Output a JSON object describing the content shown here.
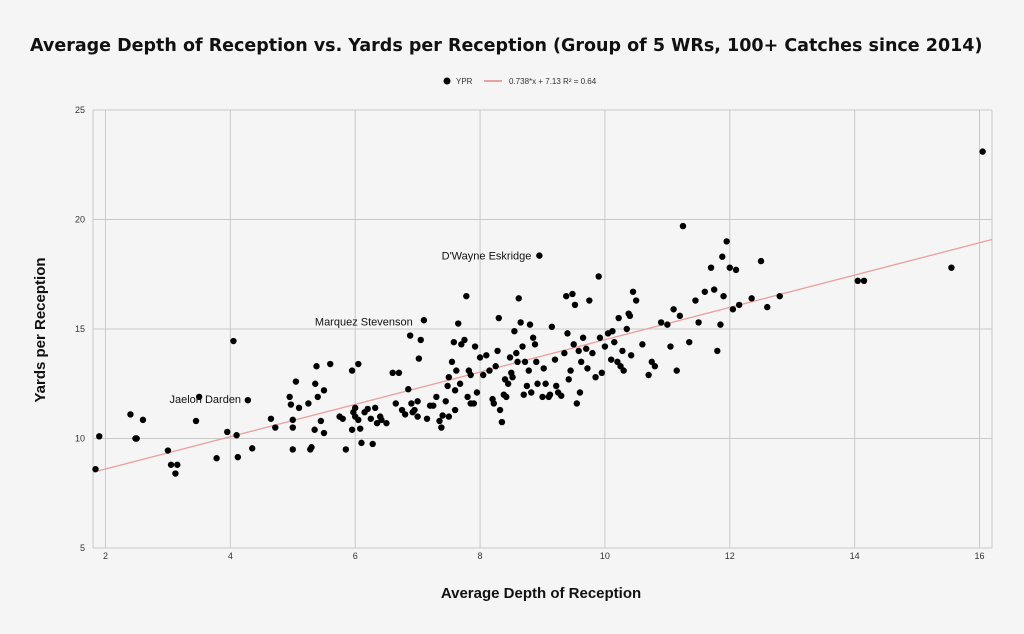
{
  "chart_data": {
    "type": "scatter",
    "title": "Average Depth of Reception vs. Yards per Reception (Group of 5 WRs, 100+ Catches since 2014)",
    "xlabel": "Average Depth of Reception",
    "ylabel": "Yards per Reception",
    "xlim": [
      1.8,
      16.2
    ],
    "ylim": [
      5,
      25
    ],
    "x_ticks": [
      2,
      4,
      6,
      8,
      10,
      12,
      14,
      16
    ],
    "y_ticks": [
      5,
      10,
      15,
      20,
      25
    ],
    "grid": true,
    "legend_position": "top-center",
    "legend": {
      "points_label": "YPR",
      "trendline_label": "0.738*x + 7.13 R² = 0.64"
    },
    "trendline": {
      "slope": 0.738,
      "intercept": 7.13,
      "r2": 0.64,
      "color": "#e8a0a0"
    },
    "point_color": "#000000",
    "annotations": [
      {
        "text": "D'Wayne Eskridge",
        "x": 8.95,
        "y": 18.35
      },
      {
        "text": "Marquez Stevenson",
        "x": 7.05,
        "y": 15.35
      },
      {
        "text": "Jaelon Darden",
        "x": 4.3,
        "y": 11.8
      }
    ],
    "points": [
      [
        1.84,
        8.6
      ],
      [
        1.9,
        10.1
      ],
      [
        2.4,
        11.1
      ],
      [
        2.48,
        10.0
      ],
      [
        2.5,
        10.0
      ],
      [
        2.6,
        10.85
      ],
      [
        3.0,
        9.45
      ],
      [
        3.05,
        8.8
      ],
      [
        3.12,
        8.4
      ],
      [
        3.15,
        8.8
      ],
      [
        3.45,
        10.8
      ],
      [
        3.5,
        11.9
      ],
      [
        3.78,
        9.1
      ],
      [
        3.95,
        10.3
      ],
      [
        4.05,
        14.45
      ],
      [
        4.1,
        10.15
      ],
      [
        4.12,
        9.15
      ],
      [
        4.28,
        11.75
      ],
      [
        4.35,
        9.55
      ],
      [
        4.65,
        10.9
      ],
      [
        4.72,
        10.5
      ],
      [
        4.95,
        11.9
      ],
      [
        4.97,
        11.55
      ],
      [
        5.0,
        9.5
      ],
      [
        5.0,
        10.85
      ],
      [
        5.0,
        10.5
      ],
      [
        5.05,
        12.6
      ],
      [
        5.1,
        11.4
      ],
      [
        5.25,
        11.6
      ],
      [
        5.28,
        9.5
      ],
      [
        5.3,
        9.6
      ],
      [
        5.35,
        10.4
      ],
      [
        5.36,
        12.5
      ],
      [
        5.38,
        13.3
      ],
      [
        5.4,
        11.9
      ],
      [
        5.45,
        10.8
      ],
      [
        5.5,
        10.25
      ],
      [
        5.5,
        12.2
      ],
      [
        5.6,
        13.4
      ],
      [
        5.75,
        11.0
      ],
      [
        5.8,
        10.9
      ],
      [
        5.85,
        9.5
      ],
      [
        5.95,
        13.1
      ],
      [
        5.95,
        10.4
      ],
      [
        5.97,
        11.2
      ],
      [
        6.0,
        11.0
      ],
      [
        6.0,
        11.4
      ],
      [
        6.05,
        13.4
      ],
      [
        6.05,
        10.85
      ],
      [
        6.08,
        10.45
      ],
      [
        6.1,
        9.8
      ],
      [
        6.15,
        11.2
      ],
      [
        6.2,
        11.35
      ],
      [
        6.25,
        10.9
      ],
      [
        6.28,
        9.75
      ],
      [
        6.32,
        11.4
      ],
      [
        6.35,
        10.7
      ],
      [
        6.4,
        11.0
      ],
      [
        6.42,
        10.85
      ],
      [
        6.5,
        10.7
      ],
      [
        6.6,
        13.0
      ],
      [
        6.65,
        11.6
      ],
      [
        6.7,
        13.0
      ],
      [
        6.75,
        11.3
      ],
      [
        6.8,
        11.1
      ],
      [
        6.85,
        12.25
      ],
      [
        6.88,
        14.7
      ],
      [
        6.9,
        11.6
      ],
      [
        6.92,
        11.2
      ],
      [
        6.95,
        11.3
      ],
      [
        7.0,
        11.0
      ],
      [
        7.0,
        11.7
      ],
      [
        7.02,
        13.65
      ],
      [
        7.05,
        14.5
      ],
      [
        7.1,
        15.4
      ],
      [
        7.15,
        10.9
      ],
      [
        7.2,
        11.5
      ],
      [
        7.25,
        11.5
      ],
      [
        7.3,
        11.9
      ],
      [
        7.35,
        10.8
      ],
      [
        7.38,
        10.5
      ],
      [
        7.4,
        11.05
      ],
      [
        7.45,
        11.7
      ],
      [
        7.48,
        12.4
      ],
      [
        7.5,
        11.0
      ],
      [
        7.5,
        12.8
      ],
      [
        7.55,
        13.5
      ],
      [
        7.58,
        14.4
      ],
      [
        7.6,
        11.3
      ],
      [
        7.6,
        12.2
      ],
      [
        7.62,
        13.1
      ],
      [
        7.65,
        15.25
      ],
      [
        7.68,
        12.5
      ],
      [
        7.7,
        14.3
      ],
      [
        7.75,
        14.5
      ],
      [
        7.78,
        16.5
      ],
      [
        7.8,
        11.9
      ],
      [
        7.82,
        13.1
      ],
      [
        7.85,
        12.9
      ],
      [
        7.85,
        11.6
      ],
      [
        7.9,
        11.6
      ],
      [
        7.92,
        14.2
      ],
      [
        7.95,
        12.1
      ],
      [
        8.0,
        13.7
      ],
      [
        8.05,
        12.9
      ],
      [
        8.1,
        13.8
      ],
      [
        8.15,
        13.1
      ],
      [
        8.2,
        11.8
      ],
      [
        8.22,
        11.6
      ],
      [
        8.25,
        13.3
      ],
      [
        8.28,
        14.0
      ],
      [
        8.3,
        15.5
      ],
      [
        8.32,
        11.3
      ],
      [
        8.35,
        10.75
      ],
      [
        8.38,
        12.0
      ],
      [
        8.4,
        12.7
      ],
      [
        8.42,
        11.9
      ],
      [
        8.45,
        12.5
      ],
      [
        8.48,
        13.7
      ],
      [
        8.5,
        13.0
      ],
      [
        8.52,
        12.8
      ],
      [
        8.55,
        14.9
      ],
      [
        8.58,
        13.9
      ],
      [
        8.6,
        13.5
      ],
      [
        8.62,
        16.4
      ],
      [
        8.65,
        15.3
      ],
      [
        8.68,
        14.2
      ],
      [
        8.7,
        12.0
      ],
      [
        8.72,
        13.5
      ],
      [
        8.75,
        12.4
      ],
      [
        8.78,
        13.1
      ],
      [
        8.8,
        15.2
      ],
      [
        8.82,
        12.1
      ],
      [
        8.85,
        14.6
      ],
      [
        8.88,
        14.3
      ],
      [
        8.9,
        13.5
      ],
      [
        8.92,
        12.5
      ],
      [
        8.95,
        18.35
      ],
      [
        9.0,
        11.9
      ],
      [
        9.02,
        13.2
      ],
      [
        9.05,
        12.5
      ],
      [
        9.1,
        11.9
      ],
      [
        9.12,
        12.0
      ],
      [
        9.15,
        15.1
      ],
      [
        9.2,
        13.6
      ],
      [
        9.22,
        12.4
      ],
      [
        9.25,
        12.1
      ],
      [
        9.3,
        11.95
      ],
      [
        9.35,
        13.9
      ],
      [
        9.38,
        16.5
      ],
      [
        9.4,
        14.8
      ],
      [
        9.42,
        12.7
      ],
      [
        9.45,
        13.1
      ],
      [
        9.48,
        16.6
      ],
      [
        9.5,
        14.3
      ],
      [
        9.52,
        16.1
      ],
      [
        9.55,
        11.6
      ],
      [
        9.58,
        14.0
      ],
      [
        9.6,
        12.1
      ],
      [
        9.62,
        13.5
      ],
      [
        9.65,
        14.6
      ],
      [
        9.7,
        14.1
      ],
      [
        9.72,
        13.2
      ],
      [
        9.75,
        16.3
      ],
      [
        9.8,
        13.9
      ],
      [
        9.85,
        12.8
      ],
      [
        9.9,
        17.4
      ],
      [
        9.92,
        14.6
      ],
      [
        9.95,
        13.0
      ],
      [
        10.0,
        14.2
      ],
      [
        10.05,
        14.8
      ],
      [
        10.1,
        13.6
      ],
      [
        10.12,
        14.9
      ],
      [
        10.15,
        14.4
      ],
      [
        10.2,
        13.5
      ],
      [
        10.22,
        15.5
      ],
      [
        10.25,
        13.3
      ],
      [
        10.28,
        14.0
      ],
      [
        10.3,
        13.1
      ],
      [
        10.35,
        15.0
      ],
      [
        10.38,
        15.7
      ],
      [
        10.4,
        15.6
      ],
      [
        10.42,
        13.8
      ],
      [
        10.45,
        16.7
      ],
      [
        10.5,
        16.3
      ],
      [
        10.6,
        14.3
      ],
      [
        10.7,
        12.9
      ],
      [
        10.75,
        13.5
      ],
      [
        10.8,
        13.3
      ],
      [
        10.9,
        15.3
      ],
      [
        11.0,
        15.2
      ],
      [
        11.05,
        14.2
      ],
      [
        11.1,
        15.9
      ],
      [
        11.15,
        13.1
      ],
      [
        11.2,
        15.6
      ],
      [
        11.25,
        19.7
      ],
      [
        11.35,
        14.4
      ],
      [
        11.45,
        16.3
      ],
      [
        11.5,
        15.3
      ],
      [
        11.6,
        16.7
      ],
      [
        11.7,
        17.8
      ],
      [
        11.75,
        16.8
      ],
      [
        11.8,
        14.0
      ],
      [
        11.85,
        15.2
      ],
      [
        11.88,
        18.3
      ],
      [
        11.9,
        16.5
      ],
      [
        11.95,
        19.0
      ],
      [
        12.0,
        17.8
      ],
      [
        12.05,
        15.9
      ],
      [
        12.1,
        17.7
      ],
      [
        12.15,
        16.1
      ],
      [
        12.35,
        16.4
      ],
      [
        12.5,
        18.1
      ],
      [
        12.6,
        16.0
      ],
      [
        12.8,
        16.5
      ],
      [
        14.05,
        17.2
      ],
      [
        14.15,
        17.2
      ],
      [
        15.55,
        17.8
      ],
      [
        16.05,
        23.1
      ]
    ]
  }
}
